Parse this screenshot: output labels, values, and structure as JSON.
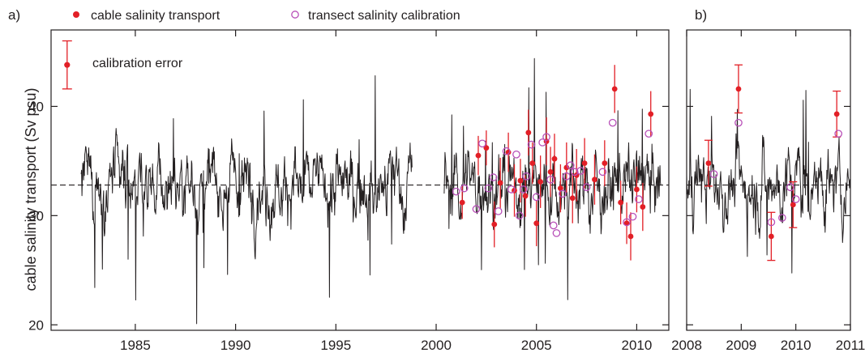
{
  "colors": {
    "series": "#231f20",
    "cable_point": "#e21f26",
    "error_bar": "#e21f26",
    "transect_point": "#b84fb8",
    "mean_line": "#231f20",
    "frame": "#231f20"
  },
  "legend": {
    "cable": "cable salinity transport",
    "transect": "transect salinity calibration",
    "calibration_error": "calibration error",
    "placement": "top"
  },
  "chart_data": [
    {
      "type": "line",
      "panel_label": "a)",
      "ylabel": "cable salinity transport (Sv psu)",
      "xlabel": "",
      "xlim": [
        1980.8,
        2011.6
      ],
      "ylim": [
        19.5,
        47
      ],
      "xticks": [
        1985,
        1990,
        1995,
        2000,
        2005,
        2010
      ],
      "yticks": [
        20,
        30,
        40
      ],
      "mean_line": 32.8,
      "grid": false,
      "gaps": [
        [
          1998.8,
          2000.4
        ]
      ],
      "series": [
        {
          "name": "cable salinity transport",
          "x": [
            2001.3,
            2002.1,
            2002.5,
            2002.9,
            2003.2,
            2003.6,
            2003.9,
            2004.2,
            2004.45,
            2004.6,
            2004.8,
            2005.0,
            2005.2,
            2005.5,
            2005.7,
            2005.9,
            2006.2,
            2006.5,
            2006.8,
            2007.0,
            2007.4,
            2007.9,
            2008.4,
            2008.9,
            2009.2,
            2009.5,
            2009.7,
            2010.0,
            2010.3,
            2010.7
          ],
          "values": [
            31.2,
            35.5,
            36.2,
            29.2,
            33.0,
            35.8,
            32.3,
            33.2,
            31.8,
            37.6,
            34.8,
            29.3,
            33.1,
            36.8,
            34.0,
            35.2,
            32.5,
            34.4,
            31.6,
            33.7,
            34.8,
            33.3,
            34.8,
            41.6,
            31.2,
            29.3,
            28.1,
            32.4,
            30.8,
            39.3
          ],
          "errors": [
            1.5,
            1.8,
            1.6,
            2.1,
            2.3,
            1.8,
            2.4,
            2.0,
            1.9,
            2.1,
            1.9,
            2.1,
            2.4,
            2.2,
            2.3,
            2.3,
            2.2,
            2.3,
            2.3,
            2.4,
            2.3,
            2.3,
            2.1,
            2.2,
            2.0,
            1.9,
            2.2,
            2.1,
            2.2,
            2.1
          ]
        },
        {
          "name": "transect salinity calibration",
          "x": [
            2001.0,
            2001.4,
            2002.0,
            2002.3,
            2002.6,
            2002.85,
            2003.1,
            2003.5,
            2003.75,
            2004.0,
            2004.15,
            2004.35,
            2004.5,
            2004.75,
            2005.0,
            2005.3,
            2005.5,
            2005.7,
            2005.85,
            2006.0,
            2006.3,
            2006.5,
            2006.7,
            2006.9,
            2007.2,
            2007.5,
            2008.3,
            2008.8,
            2009.5,
            2009.8,
            2010.1,
            2010.6
          ],
          "values": [
            32.2,
            32.5,
            30.6,
            36.6,
            32.5,
            33.5,
            30.4,
            35.9,
            32.4,
            35.6,
            30.0,
            32.4,
            33.6,
            36.5,
            31.7,
            36.7,
            37.2,
            33.3,
            29.1,
            28.4,
            32.0,
            33.6,
            34.6,
            34.0,
            34.1,
            32.6,
            34.0,
            38.5,
            29.4,
            29.9,
            31.5,
            37.5
          ]
        }
      ],
      "calibration_error_example": {
        "x": 1981.6,
        "value": 43.8,
        "error": 2.2
      }
    },
    {
      "type": "line",
      "panel_label": "b)",
      "ylabel": "",
      "xlabel": "",
      "xlim": [
        2008.0,
        2011.0
      ],
      "ylim": [
        19.5,
        47
      ],
      "xticks": [
        2008,
        2009,
        2010,
        2011
      ],
      "yticks": [
        20,
        30,
        40
      ],
      "mean_line": 32.8,
      "grid": false,
      "series": [
        {
          "name": "cable salinity transport",
          "x": [
            2008.4,
            2008.95,
            2009.55,
            2009.95,
            2010.75
          ],
          "values": [
            34.8,
            41.6,
            28.1,
            31.0,
            39.3
          ],
          "errors": [
            2.1,
            2.2,
            2.2,
            2.1,
            2.1
          ]
        },
        {
          "name": "transect salinity calibration",
          "x": [
            2008.5,
            2008.95,
            2009.55,
            2009.75,
            2009.9,
            2010.0,
            2010.78
          ],
          "values": [
            33.8,
            38.5,
            29.4,
            29.8,
            32.6,
            31.5,
            37.5
          ]
        }
      ]
    }
  ]
}
